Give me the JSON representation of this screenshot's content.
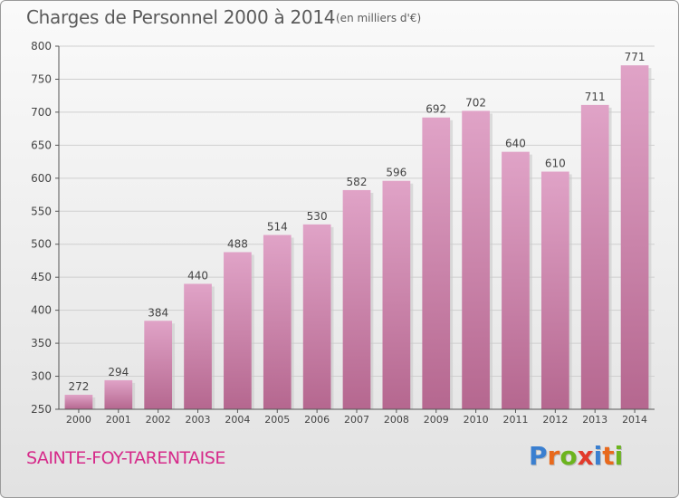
{
  "header": {
    "title": "Charges de Personnel 2000 à 2014",
    "subtitle": "(en milliers d'€)"
  },
  "footer": {
    "place": "SAINTE-FOY-TARENTAISE",
    "brand": [
      "P",
      "r",
      "o",
      "x",
      "i",
      "t",
      "i"
    ],
    "brand_colors": [
      "#3a7fd0",
      "#e8691c",
      "#6cb41e",
      "#e23a2b",
      "#3a7fd0",
      "#e8691c",
      "#6cb41e"
    ]
  },
  "chart_data": {
    "type": "bar",
    "title": "Charges de Personnel 2000 à 2014",
    "subtitle": "(en milliers d'€)",
    "categories": [
      "2000",
      "2001",
      "2002",
      "2003",
      "2004",
      "2005",
      "2006",
      "2007",
      "2008",
      "2009",
      "2010",
      "2011",
      "2012",
      "2013",
      "2014"
    ],
    "values": [
      272,
      294,
      384,
      440,
      488,
      514,
      530,
      582,
      596,
      692,
      702,
      640,
      610,
      711,
      771
    ],
    "ylim": [
      250,
      800
    ],
    "yticks": [
      250,
      300,
      350,
      400,
      450,
      500,
      550,
      600,
      650,
      700,
      750,
      800
    ],
    "grid": true,
    "bar_color": "#e0a3c7",
    "bar_color_dark": "#b5678f",
    "axis_color": "#555555",
    "grid_color": "#cfcfcf"
  }
}
